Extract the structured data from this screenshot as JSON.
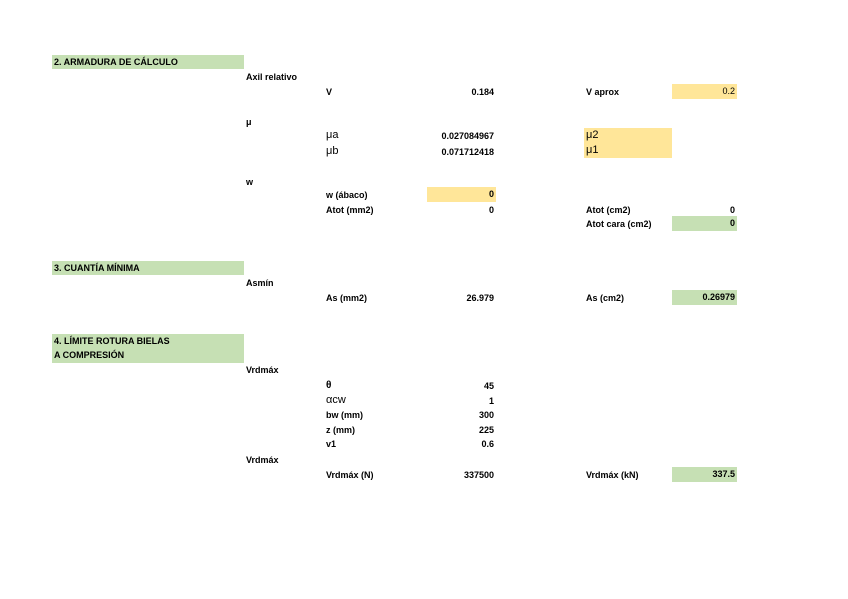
{
  "sections": {
    "s2": "2. ARMADURA DE CÁLCULO",
    "s3": "3. CUANTÍA MÍNIMA",
    "s4_line1": "4. LÍMITE ROTURA BIELAS",
    "s4_line2": "A COMPRESIÓN"
  },
  "axil": {
    "heading": "Axil relativo",
    "v_label": "V",
    "v_value": "0.184",
    "v_aprox_label": "V aprox",
    "v_aprox_value": "0.2"
  },
  "mu": {
    "heading": "μ",
    "mua_label": "μa",
    "mua_value": "0.027084967",
    "mub_label": "μb",
    "mub_value": "0.071712418",
    "mu2_label": "μ2",
    "mu1_label": "μ1"
  },
  "w": {
    "heading": "w",
    "abaco_label": "w (ábaco)",
    "abaco_value": "0",
    "atot_mm2_label": "Atot (mm2)",
    "atot_mm2_value": "0",
    "atot_cm2_label": "Atot (cm2)",
    "atot_cm2_value": "0",
    "atot_cara_label": "Atot cara (cm2)",
    "atot_cara_value": "0"
  },
  "asmin": {
    "heading": "Asmín",
    "as_mm2_label": "As (mm2)",
    "as_mm2_value": "26.979",
    "as_cm2_label": "As (cm2)",
    "as_cm2_value": "0.26979"
  },
  "vrd": {
    "heading1": "Vrdmáx",
    "theta_label": "θ",
    "theta_value": "45",
    "acw_label": "αcw",
    "acw_value": "1",
    "bw_label": "bw (mm)",
    "bw_value": "300",
    "z_label": "z (mm)",
    "z_value": "225",
    "v1_label": "v1",
    "v1_value": "0.6",
    "heading2": "Vrdmáx",
    "vrd_n_label": "Vrdmáx (N)",
    "vrd_n_value": "337500",
    "vrd_kn_label": "Vrdmáx (kN)",
    "vrd_kn_value": "337.5"
  },
  "colors": {
    "green_fill": "#c6e0b4",
    "yellow_fill": "#ffe699"
  }
}
